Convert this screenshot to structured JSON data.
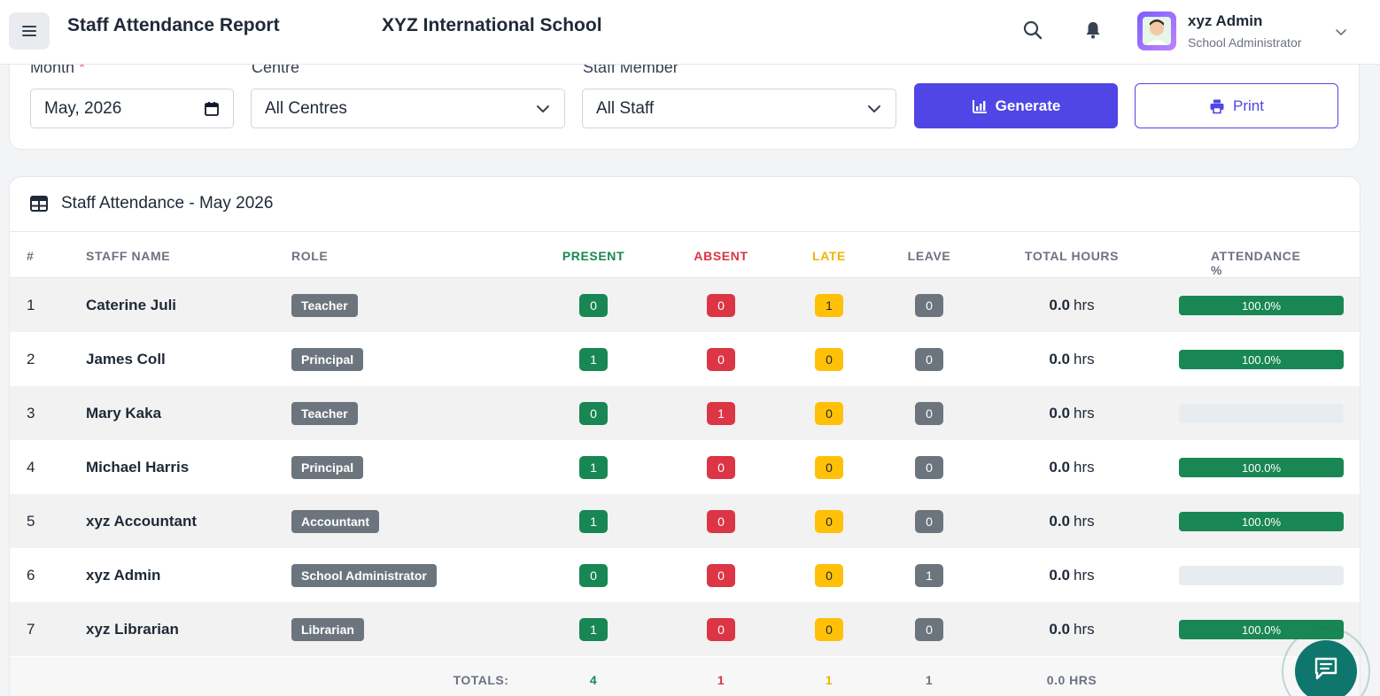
{
  "header": {
    "page_title": "Staff Attendance Report",
    "school_name": "XYZ International School",
    "user_name": "xyz Admin",
    "user_role": "School Administrator"
  },
  "filters": {
    "month_label": "Month",
    "month_required_mark": "*",
    "month_value": "May, 2026",
    "centre_label": "Centre",
    "centre_value": "All Centres",
    "staff_label": "Staff Member",
    "staff_value": "All Staff",
    "generate_label": "Generate",
    "print_label": "Print"
  },
  "table": {
    "title": "Staff Attendance - May 2026",
    "columns": {
      "idx": "#",
      "name": "STAFF NAME",
      "role": "ROLE",
      "present": "PRESENT",
      "absent": "ABSENT",
      "late": "LATE",
      "leave": "LEAVE",
      "hours": "TOTAL HOURS",
      "pct": "ATTENDANCE %"
    },
    "hours_unit": "hrs",
    "rows": [
      {
        "idx": "1",
        "name": "Caterine Juli",
        "role": "Teacher",
        "present": "0",
        "absent": "0",
        "late": "1",
        "leave": "0",
        "hours": "0.0",
        "pct_label": "100.0%",
        "pct": 100
      },
      {
        "idx": "2",
        "name": "James Coll",
        "role": "Principal",
        "present": "1",
        "absent": "0",
        "late": "0",
        "leave": "0",
        "hours": "0.0",
        "pct_label": "100.0%",
        "pct": 100
      },
      {
        "idx": "3",
        "name": "Mary Kaka",
        "role": "Teacher",
        "present": "0",
        "absent": "1",
        "late": "0",
        "leave": "0",
        "hours": "0.0",
        "pct_label": "",
        "pct": 0
      },
      {
        "idx": "4",
        "name": "Michael Harris",
        "role": "Principal",
        "present": "1",
        "absent": "0",
        "late": "0",
        "leave": "0",
        "hours": "0.0",
        "pct_label": "100.0%",
        "pct": 100
      },
      {
        "idx": "5",
        "name": "xyz Accountant",
        "role": "Accountant",
        "present": "1",
        "absent": "0",
        "late": "0",
        "leave": "0",
        "hours": "0.0",
        "pct_label": "100.0%",
        "pct": 100
      },
      {
        "idx": "6",
        "name": "xyz Admin",
        "role": "School Administrator",
        "present": "0",
        "absent": "0",
        "late": "0",
        "leave": "1",
        "hours": "0.0",
        "pct_label": "",
        "pct": 0
      },
      {
        "idx": "7",
        "name": "xyz Librarian",
        "role": "Librarian",
        "present": "1",
        "absent": "0",
        "late": "0",
        "leave": "0",
        "hours": "0.0",
        "pct_label": "100.0%",
        "pct": 100
      }
    ],
    "totals": {
      "label": "TOTALS:",
      "present": "4",
      "absent": "1",
      "late": "1",
      "leave": "1",
      "hours": "0.0 HRS"
    }
  },
  "colors": {
    "primary": "#4f46e5",
    "present": "#198754",
    "absent": "#dc3545",
    "late": "#ffc107",
    "leave": "#6c757d",
    "chat": "#0f766e"
  },
  "icons": [
    "menu-icon",
    "search-icon",
    "bell-icon",
    "chevron-down-icon",
    "calendar-icon",
    "chart-icon",
    "printer-icon",
    "table-icon",
    "chat-icon"
  ]
}
